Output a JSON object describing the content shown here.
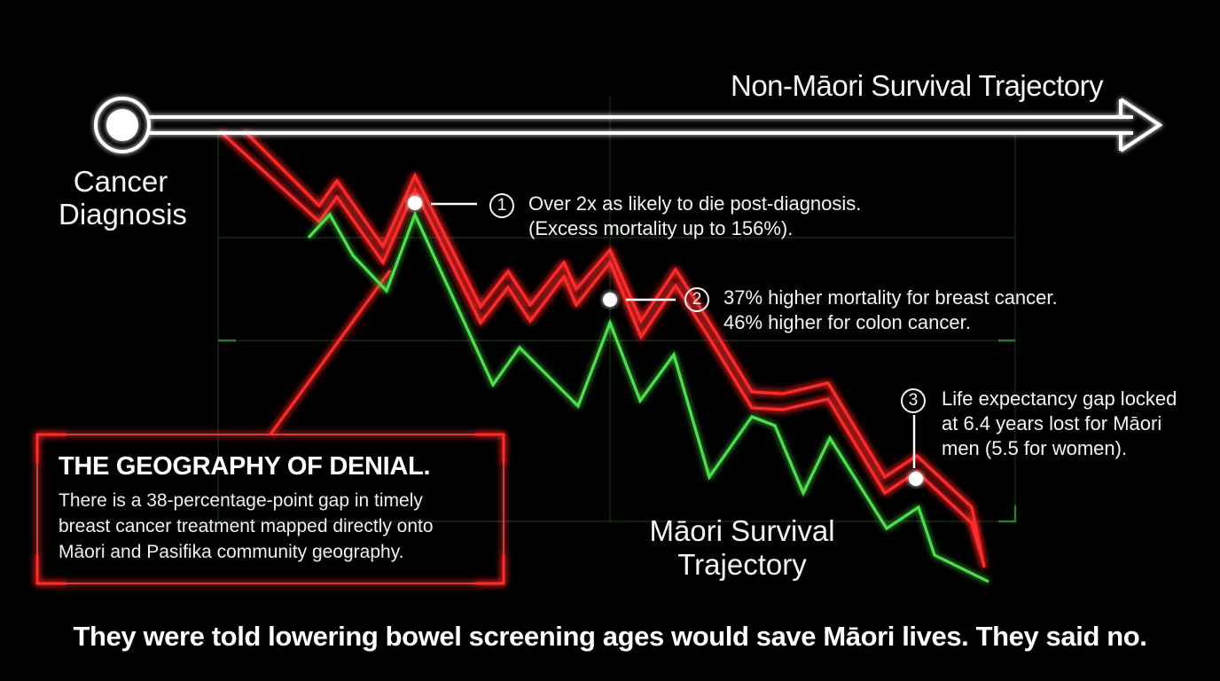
{
  "top_label": "Non-Māori Survival Trajectory",
  "start_label": "Cancer Diagnosis",
  "maori_label": "Māori Survival Trajectory",
  "callouts": [
    {
      "number": "1",
      "lines": [
        "Over 2x as likely to die post-diagnosis.",
        "(Excess mortality up to 156%)."
      ]
    },
    {
      "number": "2",
      "lines": [
        "37% higher mortality for breast cancer.",
        "46% higher for colon cancer."
      ]
    },
    {
      "number": "3",
      "lines": [
        "Life expectancy gap locked",
        "at 6.4 years lost for Māori",
        "men (5.5 for women)."
      ]
    }
  ],
  "denial_box": {
    "title": "THE GEOGRAPHY OF DENIAL.",
    "lines": [
      "There is a 38-percentage-point gap in timely",
      "breast cancer treatment mapped directly onto",
      "Māori and Pasifika community geography."
    ]
  },
  "footer": "They were told lowering bowel screening ages would save Māori lives. They said no.",
  "colors": {
    "background": "#000000",
    "red_line": "#ff2a2a",
    "green_line": "#4ee04e",
    "white_line": "#ffffff",
    "grid": "#1f4a1f"
  }
}
